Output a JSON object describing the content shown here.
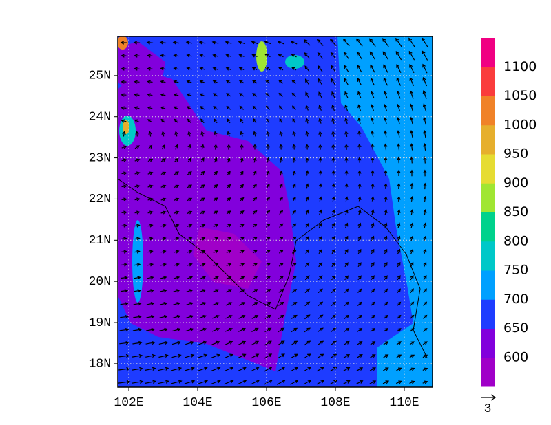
{
  "map": {
    "xlim": [
      101.68,
      110.82
    ],
    "ylim": [
      17.43,
      25.95
    ],
    "xticks": [
      {
        "value": 102,
        "label": "102E"
      },
      {
        "value": 104,
        "label": "104E"
      },
      {
        "value": 106,
        "label": "106E"
      },
      {
        "value": 108,
        "label": "108E"
      },
      {
        "value": 110,
        "label": "110E"
      }
    ],
    "yticks": [
      {
        "value": 18,
        "label": "18N"
      },
      {
        "value": 19,
        "label": "19N"
      },
      {
        "value": 20,
        "label": "20N"
      },
      {
        "value": 21,
        "label": "21N"
      },
      {
        "value": 22,
        "label": "22N"
      },
      {
        "value": 23,
        "label": "23N"
      },
      {
        "value": 24,
        "label": "24N"
      },
      {
        "value": 25,
        "label": "25N"
      }
    ],
    "grid": true,
    "colorbar": {
      "levels": [
        600,
        650,
        700,
        750,
        800,
        850,
        900,
        950,
        1000,
        1050,
        1100
      ],
      "colors": [
        "#a000c8",
        "#8200dc",
        "#1e3cff",
        "#00a0ff",
        "#00c8c8",
        "#00d28c",
        "#a0e632",
        "#e6dc32",
        "#e6af2d",
        "#f08228",
        "#fa3c3c",
        "#f00082"
      ]
    },
    "reference_vector": 3
  }
}
